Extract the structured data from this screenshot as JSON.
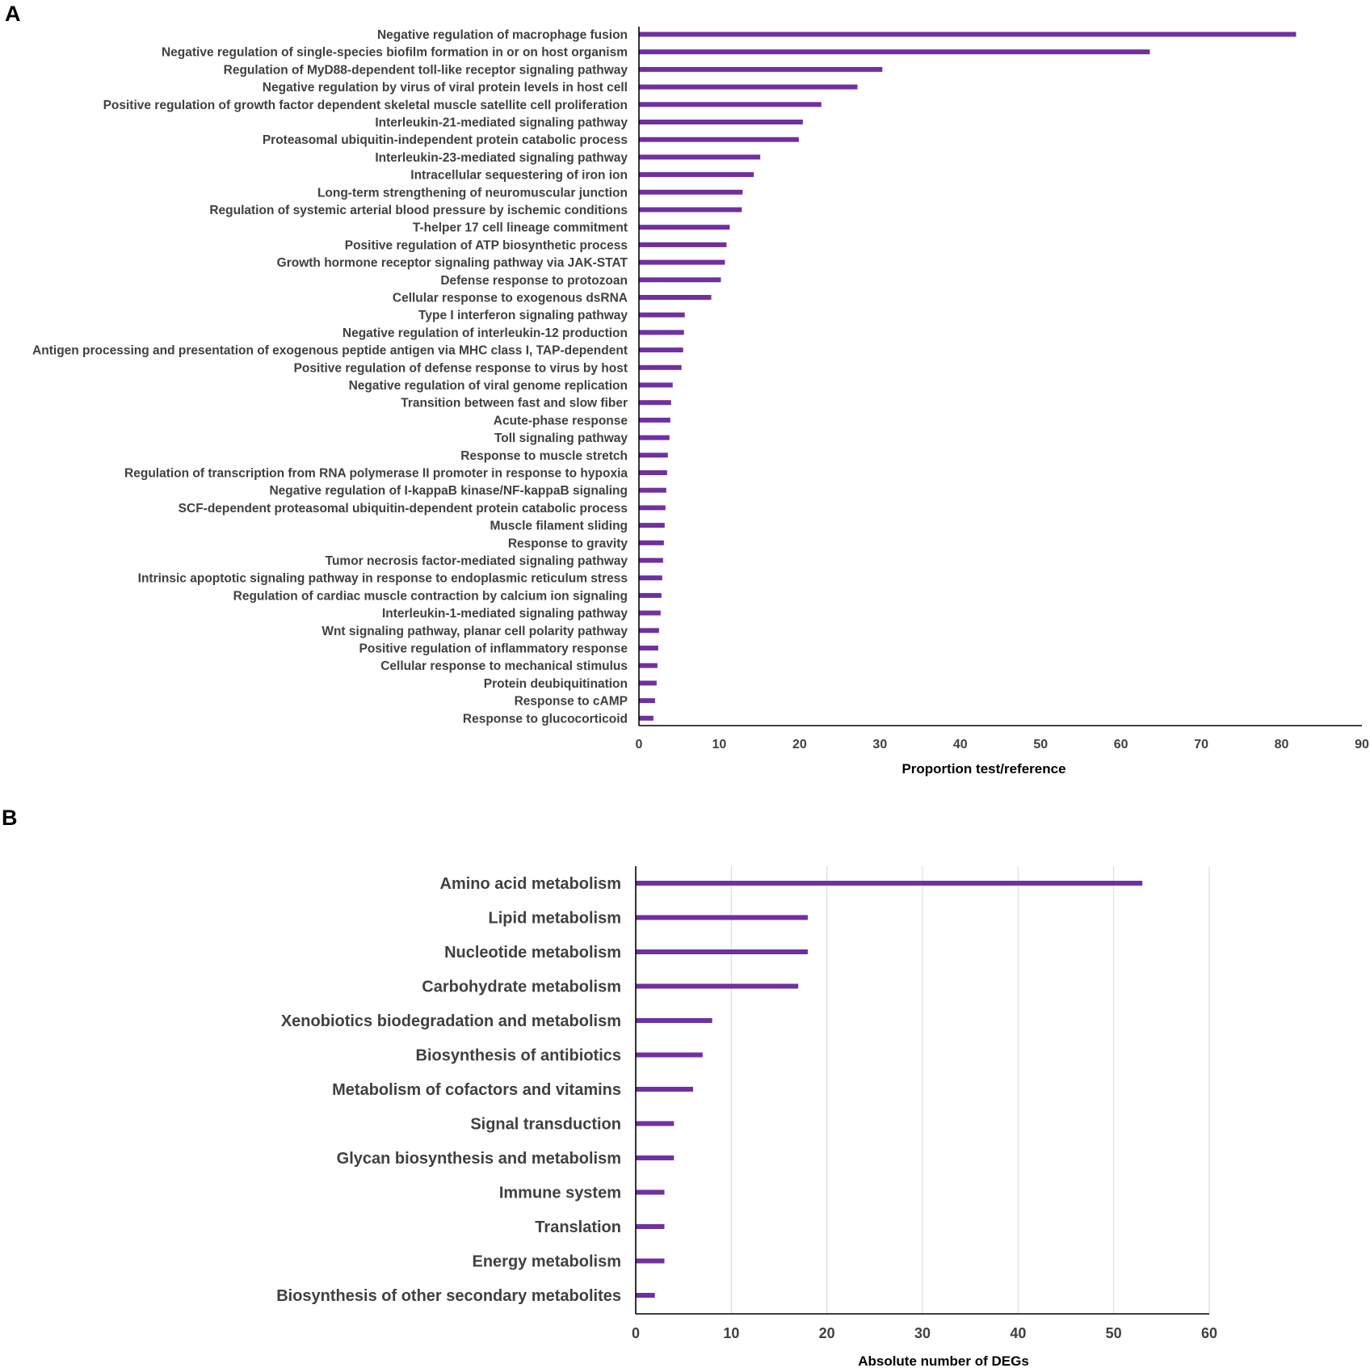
{
  "panels": {
    "a": {
      "letter": "A"
    },
    "b": {
      "letter": "B"
    }
  },
  "colors": {
    "bar": "#7030a0",
    "label": "#404040",
    "axis": "#000000",
    "grid": "#d9d9d9"
  },
  "chart_data": [
    {
      "type": "bar",
      "orientation": "horizontal",
      "title": "",
      "xlabel": "Proportion test/reference",
      "ylabel": "",
      "xlim": [
        0,
        90
      ],
      "xticks": [
        0,
        10,
        20,
        30,
        40,
        50,
        60,
        70,
        80,
        90
      ],
      "grid": false,
      "categories": [
        "Negative regulation of macrophage fusion",
        "Negative regulation of single-species biofilm formation in or on host organism",
        "Regulation of MyD88-dependent toll-like receptor signaling pathway",
        "Negative regulation by virus of viral protein levels in host cell",
        "Positive regulation of growth factor dependent skeletal muscle satellite cell proliferation",
        "Interleukin-21-mediated signaling pathway",
        "Proteasomal ubiquitin-independent protein catabolic process",
        "Interleukin-23-mediated signaling pathway",
        "Intracellular sequestering of iron ion",
        "Long-term strengthening of neuromuscular junction",
        "Regulation of systemic arterial blood pressure by ischemic conditions",
        "T-helper 17 cell lineage commitment",
        "Positive regulation of ATP biosynthetic process",
        "Growth hormone receptor signaling pathway via JAK-STAT",
        "Defense response to protozoan",
        "Cellular response to exogenous dsRNA",
        "Type I interferon signaling pathway",
        "Negative regulation of interleukin-12 production",
        "Antigen processing and presentation of exogenous peptide antigen via MHC class I, TAP-dependent",
        "Positive regulation of defense response to virus by host",
        "Negative regulation of viral genome replication",
        "Transition between fast and slow fiber",
        "Acute-phase response",
        "Toll signaling pathway",
        "Response to muscle stretch",
        "Regulation of transcription from RNA polymerase II promoter in response to hypoxia",
        "Negative regulation of I-kappaB kinase/NF-kappaB signaling",
        "SCF-dependent proteasomal ubiquitin-dependent protein catabolic process",
        "Muscle filament sliding",
        "Response to gravity",
        "Tumor necrosis factor-mediated signaling pathway",
        "Intrinsic apoptotic signaling pathway in response to endoplasmic reticulum stress",
        "Regulation of cardiac muscle contraction by calcium ion signaling",
        "Interleukin-1-mediated signaling pathway",
        "Wnt signaling pathway, planar cell polarity pathway",
        "Positive regulation of inflammatory response",
        "Cellular response to mechanical stimulus",
        "Protein deubiquitination",
        "Response to cAMP",
        "Response to glucocorticoid"
      ],
      "values": [
        81.8,
        63.6,
        30.3,
        27.2,
        22.7,
        20.4,
        19.9,
        15.1,
        14.3,
        12.9,
        12.8,
        11.3,
        10.9,
        10.7,
        10.2,
        9.0,
        5.7,
        5.6,
        5.5,
        5.3,
        4.2,
        4.0,
        3.9,
        3.8,
        3.6,
        3.5,
        3.4,
        3.3,
        3.2,
        3.1,
        3.0,
        2.9,
        2.8,
        2.7,
        2.5,
        2.4,
        2.3,
        2.2,
        2.0,
        1.8
      ]
    },
    {
      "type": "bar",
      "orientation": "horizontal",
      "title": "",
      "xlabel": "Absolute number of DEGs",
      "ylabel": "",
      "xlim": [
        0,
        60
      ],
      "xticks": [
        0,
        10,
        20,
        30,
        40,
        50,
        60
      ],
      "grid": true,
      "categories": [
        "Amino acid metabolism",
        "Lipid metabolism",
        "Nucleotide metabolism",
        "Carbohydrate metabolism",
        "Xenobiotics biodegradation and metabolism",
        "Biosynthesis of antibiotics",
        "Metabolism of cofactors and vitamins",
        "Signal transduction",
        "Glycan biosynthesis and metabolism",
        "Immune system",
        "Translation",
        "Energy metabolism",
        "Biosynthesis of other secondary metabolites"
      ],
      "values": [
        53,
        18,
        18,
        17,
        8,
        7,
        6,
        4,
        4,
        3,
        3,
        3,
        2
      ]
    }
  ]
}
